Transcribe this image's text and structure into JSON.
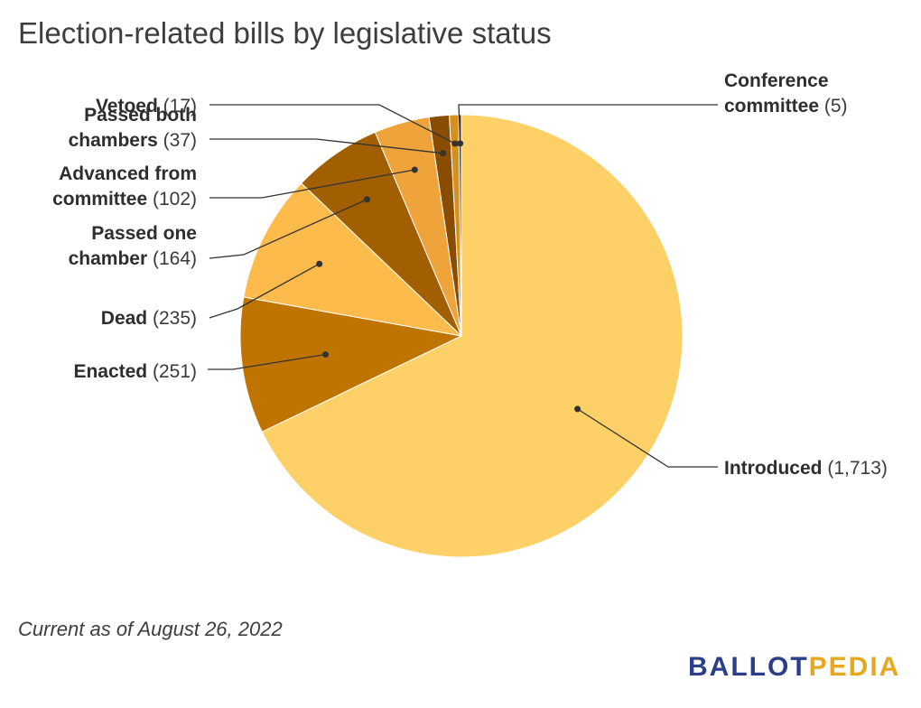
{
  "title": "Election-related bills by legislative status",
  "footnote": "Current as of August 26, 2022",
  "logo": {
    "part1": "BALLOT",
    "part2": "PEDIA"
  },
  "colors": {
    "logo_blue": "#2b3e8c",
    "logo_gold": "#e8a71c"
  },
  "chart_data": {
    "type": "pie",
    "title": "Election-related bills by legislative status",
    "slices": [
      {
        "label": "Introduced",
        "value": 1713,
        "display": "(1,713)",
        "color": "#fdd068"
      },
      {
        "label": "Enacted",
        "value": 251,
        "display": "(251)",
        "color": "#bf7400"
      },
      {
        "label": "Dead",
        "value": 235,
        "display": "(235)",
        "color": "#fdbb4c"
      },
      {
        "label": "Passed one chamber",
        "value": 164,
        "display": "(164)",
        "color": "#a15f00"
      },
      {
        "label": "Advanced from committee",
        "value": 102,
        "display": "(102)",
        "color": "#eea43a"
      },
      {
        "label": "Passed both chambers",
        "value": 37,
        "display": "(37)",
        "color": "#8a4c00"
      },
      {
        "label": "Vetoed",
        "value": 17,
        "display": "(17)",
        "color": "#d8901c"
      },
      {
        "label": "Conference committee",
        "value": 5,
        "display": "(5)",
        "color": "#6e3a00"
      }
    ],
    "legend": "none (callout labels)"
  }
}
